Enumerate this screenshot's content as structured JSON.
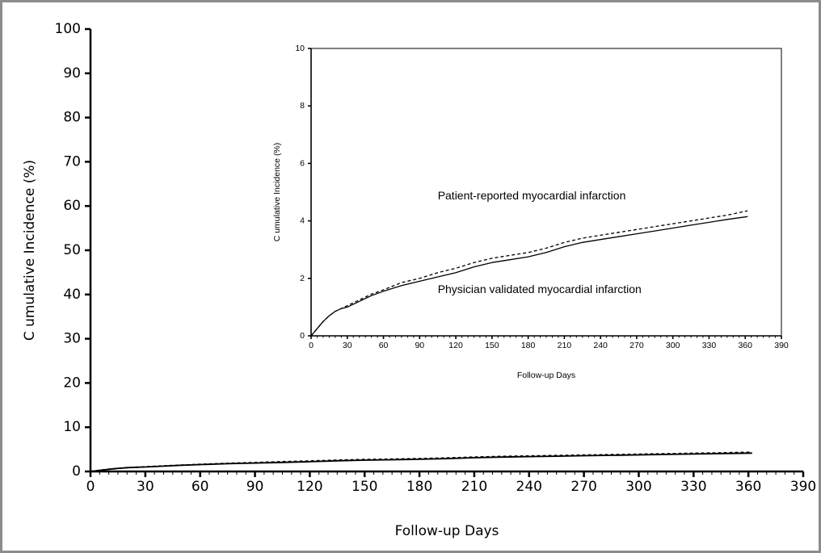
{
  "chart_data": [
    {
      "type": "line",
      "panel": "main",
      "xlabel": "Follow-up Days",
      "ylabel": "C umulative Incidence (%)",
      "xlim": [
        0,
        390
      ],
      "ylim": [
        0,
        100
      ],
      "xticks": [
        0,
        30,
        60,
        90,
        120,
        150,
        180,
        210,
        240,
        270,
        300,
        330,
        360,
        390
      ],
      "yticks": [
        0,
        10,
        20,
        30,
        40,
        50,
        60,
        70,
        80,
        90,
        100
      ],
      "series": [
        {
          "name": "Patient-reported myocardial infarction",
          "line_style": "dashed",
          "x": [
            0,
            5,
            10,
            15,
            20,
            25,
            30,
            40,
            50,
            60,
            75,
            90,
            105,
            120,
            135,
            150,
            165,
            180,
            195,
            210,
            225,
            240,
            255,
            270,
            285,
            300,
            315,
            330,
            345,
            362
          ],
          "y": [
            0,
            0.25,
            0.5,
            0.7,
            0.85,
            0.95,
            1.05,
            1.25,
            1.45,
            1.6,
            1.85,
            2.0,
            2.2,
            2.35,
            2.55,
            2.7,
            2.8,
            2.9,
            3.05,
            3.25,
            3.4,
            3.5,
            3.6,
            3.7,
            3.8,
            3.9,
            4.0,
            4.1,
            4.2,
            4.35
          ]
        },
        {
          "name": "Physician validated myocardial infarction",
          "line_style": "solid",
          "x": [
            0,
            5,
            10,
            15,
            20,
            25,
            30,
            40,
            50,
            60,
            75,
            90,
            105,
            120,
            135,
            150,
            165,
            180,
            195,
            210,
            225,
            240,
            255,
            270,
            285,
            300,
            315,
            330,
            345,
            362
          ],
          "y": [
            0,
            0.25,
            0.5,
            0.7,
            0.85,
            0.95,
            1.0,
            1.2,
            1.4,
            1.55,
            1.75,
            1.9,
            2.05,
            2.2,
            2.4,
            2.55,
            2.65,
            2.75,
            2.9,
            3.1,
            3.25,
            3.35,
            3.45,
            3.55,
            3.65,
            3.75,
            3.85,
            3.95,
            4.05,
            4.15
          ]
        }
      ]
    },
    {
      "type": "line",
      "panel": "inset",
      "xlabel": "Follow-up Days",
      "ylabel": "C umulative Incidence (%)",
      "xlim": [
        0,
        390
      ],
      "ylim": [
        0,
        10
      ],
      "xticks": [
        0,
        30,
        60,
        90,
        120,
        150,
        180,
        210,
        240,
        270,
        300,
        330,
        360,
        390
      ],
      "yticks": [
        0,
        2,
        4,
        6,
        8,
        10
      ],
      "annotations": [
        {
          "text": "Patient-reported myocardial infarction",
          "x": 105,
          "y": 4.35
        },
        {
          "text": "Physician validated myocardial infarction",
          "x": 105,
          "y": 2.05
        }
      ],
      "series": [
        {
          "name": "Patient-reported myocardial infarction",
          "line_style": "dashed",
          "x": [
            0,
            5,
            10,
            15,
            20,
            25,
            30,
            40,
            50,
            60,
            75,
            90,
            105,
            120,
            135,
            150,
            165,
            180,
            195,
            210,
            225,
            240,
            255,
            270,
            285,
            300,
            315,
            330,
            345,
            362
          ],
          "y": [
            0,
            0.25,
            0.5,
            0.7,
            0.85,
            0.95,
            1.05,
            1.25,
            1.45,
            1.6,
            1.85,
            2.0,
            2.2,
            2.35,
            2.55,
            2.7,
            2.8,
            2.9,
            3.05,
            3.25,
            3.4,
            3.5,
            3.6,
            3.7,
            3.8,
            3.9,
            4.0,
            4.1,
            4.2,
            4.35
          ]
        },
        {
          "name": "Physician validated myocardial infarction",
          "line_style": "solid",
          "x": [
            0,
            5,
            10,
            15,
            20,
            25,
            30,
            40,
            50,
            60,
            75,
            90,
            105,
            120,
            135,
            150,
            165,
            180,
            195,
            210,
            225,
            240,
            255,
            270,
            285,
            300,
            315,
            330,
            345,
            362
          ],
          "y": [
            0,
            0.25,
            0.5,
            0.7,
            0.85,
            0.95,
            1.0,
            1.2,
            1.4,
            1.55,
            1.75,
            1.9,
            2.05,
            2.2,
            2.4,
            2.55,
            2.65,
            2.75,
            2.9,
            3.1,
            3.25,
            3.35,
            3.45,
            3.55,
            3.65,
            3.75,
            3.85,
            3.95,
            4.05,
            4.15
          ]
        }
      ]
    }
  ]
}
